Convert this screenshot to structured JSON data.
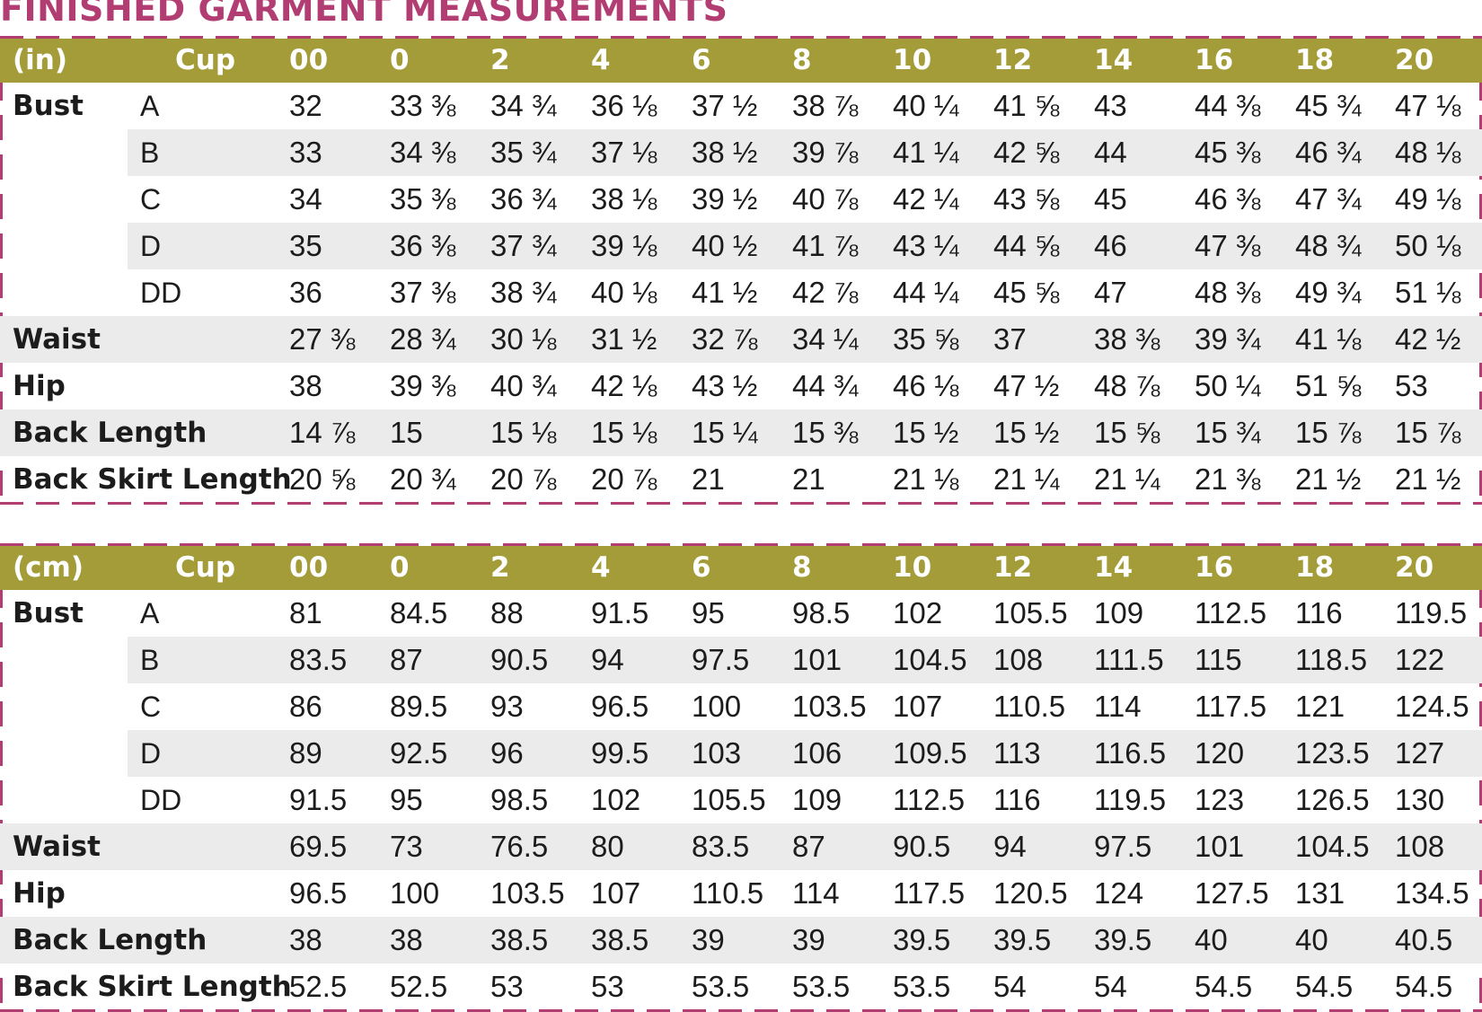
{
  "title": "FINISHED GARMENT MEASUREMENTS",
  "sizes": [
    "00",
    "0",
    "2",
    "4",
    "6",
    "8",
    "10",
    "12",
    "14",
    "16",
    "18",
    "20"
  ],
  "cup_header": "Cup",
  "tables": [
    {
      "unit": "(in)",
      "rows": [
        {
          "label": "Bust",
          "cup": "A",
          "values": [
            "32",
            "33 ⅜",
            "34 ¾",
            "36 ⅛",
            "37 ½",
            "38 ⅞",
            "40 ¼",
            "41 ⅝",
            "43",
            "44 ⅜",
            "45 ¾",
            "47 ⅛"
          ]
        },
        {
          "label": "",
          "cup": "B",
          "values": [
            "33",
            "34 ⅜",
            "35 ¾",
            "37 ⅛",
            "38 ½",
            "39 ⅞",
            "41 ¼",
            "42 ⅝",
            "44",
            "45 ⅜",
            "46 ¾",
            "48 ⅛"
          ]
        },
        {
          "label": "",
          "cup": "C",
          "values": [
            "34",
            "35 ⅜",
            "36 ¾",
            "38 ⅛",
            "39 ½",
            "40 ⅞",
            "42 ¼",
            "43 ⅝",
            "45",
            "46 ⅜",
            "47 ¾",
            "49 ⅛"
          ]
        },
        {
          "label": "",
          "cup": "D",
          "values": [
            "35",
            "36 ⅜",
            "37 ¾",
            "39 ⅛",
            "40 ½",
            "41 ⅞",
            "43 ¼",
            "44 ⅝",
            "46",
            "47 ⅜",
            "48 ¾",
            "50 ⅛"
          ]
        },
        {
          "label": "",
          "cup": "DD",
          "values": [
            "36",
            "37 ⅜",
            "38 ¾",
            "40 ⅛",
            "41 ½",
            "42 ⅞",
            "44 ¼",
            "45 ⅝",
            "47",
            "48 ⅜",
            "49 ¾",
            "51 ⅛"
          ]
        },
        {
          "label": "Waist",
          "cup": "",
          "values": [
            "27 ⅜",
            "28 ¾",
            "30 ⅛",
            "31 ½",
            "32 ⅞",
            "34 ¼",
            "35 ⅝",
            "37",
            "38 ⅜",
            "39 ¾",
            "41 ⅛",
            "42 ½"
          ]
        },
        {
          "label": "Hip",
          "cup": "",
          "values": [
            "38",
            "39 ⅜",
            "40 ¾",
            "42 ⅛",
            "43 ½",
            "44 ¾",
            "46 ⅛",
            "47 ½",
            "48 ⅞",
            "50 ¼",
            "51 ⅝",
            "53"
          ]
        },
        {
          "label": "Back Length",
          "cup": "",
          "values": [
            "14 ⅞",
            "15",
            "15 ⅛",
            "15 ⅛",
            "15 ¼",
            "15 ⅜",
            "15 ½",
            "15 ½",
            "15 ⅝",
            "15 ¾",
            "15 ⅞",
            "15 ⅞"
          ]
        },
        {
          "label": "Back Skirt Length",
          "cup": "",
          "values": [
            "20 ⅝",
            "20 ¾",
            "20 ⅞",
            "20 ⅞",
            "21",
            "21",
            "21 ⅛",
            "21 ¼",
            "21 ¼",
            "21 ⅜",
            "21 ½",
            "21 ½"
          ]
        }
      ]
    },
    {
      "unit": "(cm)",
      "rows": [
        {
          "label": "Bust",
          "cup": "A",
          "values": [
            "81",
            "84.5",
            "88",
            "91.5",
            "95",
            "98.5",
            "102",
            "105.5",
            "109",
            "112.5",
            "116",
            "119.5"
          ]
        },
        {
          "label": "",
          "cup": "B",
          "values": [
            "83.5",
            "87",
            "90.5",
            "94",
            "97.5",
            "101",
            "104.5",
            "108",
            "111.5",
            "115",
            "118.5",
            "122"
          ]
        },
        {
          "label": "",
          "cup": "C",
          "values": [
            "86",
            "89.5",
            "93",
            "96.5",
            "100",
            "103.5",
            "107",
            "110.5",
            "114",
            "117.5",
            "121",
            "124.5"
          ]
        },
        {
          "label": "",
          "cup": "D",
          "values": [
            "89",
            "92.5",
            "96",
            "99.5",
            "103",
            "106",
            "109.5",
            "113",
            "116.5",
            "120",
            "123.5",
            "127"
          ]
        },
        {
          "label": "",
          "cup": "DD",
          "values": [
            "91.5",
            "95",
            "98.5",
            "102",
            "105.5",
            "109",
            "112.5",
            "116",
            "119.5",
            "123",
            "126.5",
            "130"
          ]
        },
        {
          "label": "Waist",
          "cup": "",
          "values": [
            "69.5",
            "73",
            "76.5",
            "80",
            "83.5",
            "87",
            "90.5",
            "94",
            "97.5",
            "101",
            "104.5",
            "108"
          ]
        },
        {
          "label": "Hip",
          "cup": "",
          "values": [
            "96.5",
            "100",
            "103.5",
            "107",
            "110.5",
            "114",
            "117.5",
            "120.5",
            "124",
            "127.5",
            "131",
            "134.5"
          ]
        },
        {
          "label": "Back Length",
          "cup": "",
          "values": [
            "38",
            "38",
            "38.5",
            "38.5",
            "39",
            "39",
            "39.5",
            "39.5",
            "39.5",
            "40",
            "40",
            "40.5"
          ]
        },
        {
          "label": "Back Skirt Length",
          "cup": "",
          "values": [
            "52.5",
            "52.5",
            "53",
            "53",
            "53.5",
            "53.5",
            "53.5",
            "54",
            "54",
            "54.5",
            "54.5",
            "54.5"
          ]
        }
      ]
    }
  ]
}
